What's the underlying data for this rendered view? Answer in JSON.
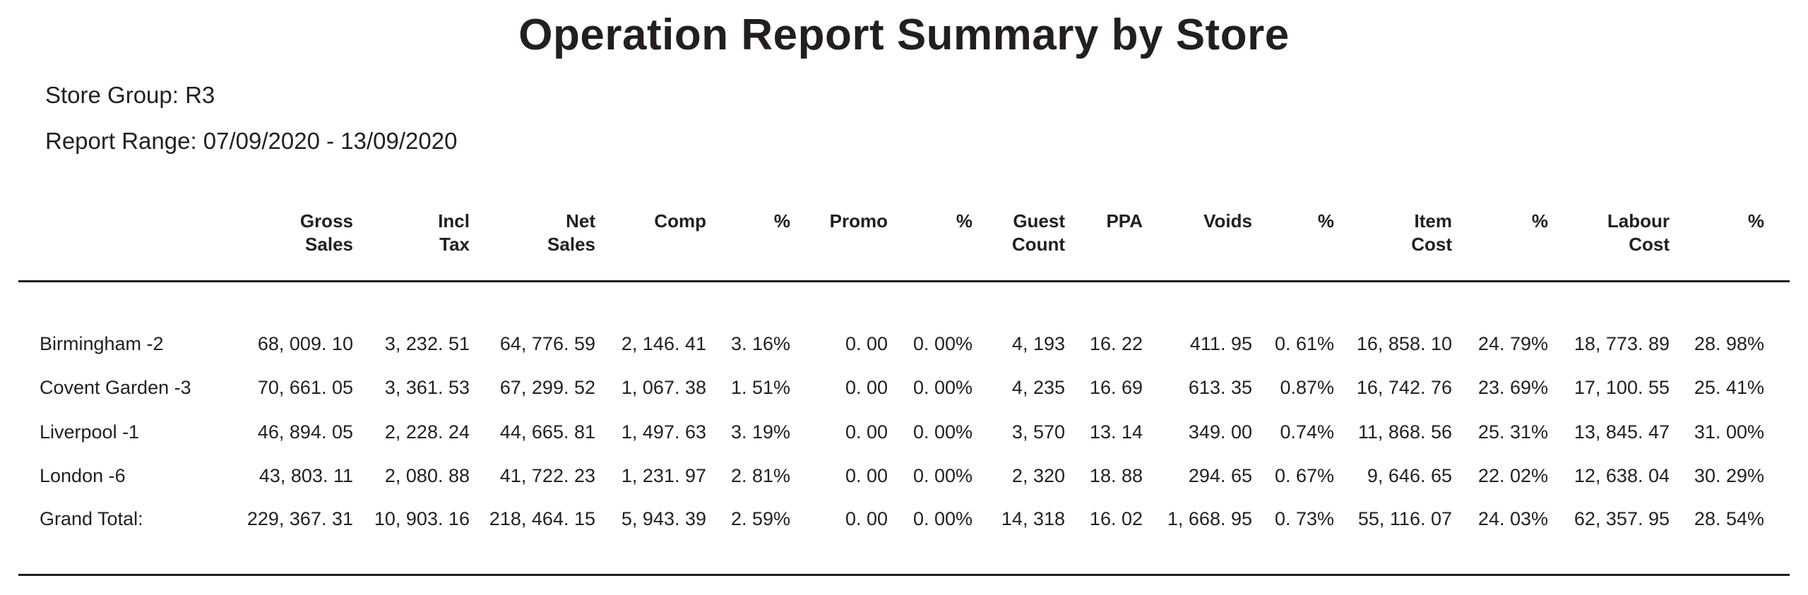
{
  "report": {
    "title": "Operation Report Summary by Store",
    "store_group": "Store Group: R3",
    "report_range": "Report Range: 07/09/2020 - 13/09/2020"
  },
  "columns": [
    {
      "line1": "Gross",
      "line2": "Sales"
    },
    {
      "line1": "Incl",
      "line2": "Tax"
    },
    {
      "line1": "Net",
      "line2": "Sales"
    },
    {
      "line1": "Comp",
      "line2": ""
    },
    {
      "line1": "%",
      "line2": ""
    },
    {
      "line1": "Promo",
      "line2": ""
    },
    {
      "line1": "%",
      "line2": ""
    },
    {
      "line1": "Guest",
      "line2": "Count"
    },
    {
      "line1": "PPA",
      "line2": ""
    },
    {
      "line1": "Voids",
      "line2": ""
    },
    {
      "line1": "%",
      "line2": ""
    },
    {
      "line1": "Item",
      "line2": "Cost"
    },
    {
      "line1": "%",
      "line2": ""
    },
    {
      "line1": "Labour",
      "line2": "Cost"
    },
    {
      "line1": "%",
      "line2": ""
    }
  ],
  "rows": [
    {
      "store": "Birmingham -2",
      "values": [
        "68, 009. 10",
        "3, 232. 51",
        "64, 776. 59",
        "2, 146. 41",
        "3. 16%",
        "0. 00",
        "0. 00%",
        "4, 193",
        "16. 22",
        "411. 95",
        "0. 61%",
        "16, 858. 10",
        "24. 79%",
        "18, 773. 89",
        "28. 98%"
      ]
    },
    {
      "store": "Covent Garden -3",
      "values": [
        "70, 661. 05",
        "3, 361. 53",
        "67, 299. 52",
        "1, 067. 38",
        "1. 51%",
        "0. 00",
        "0. 00%",
        "4, 235",
        "16. 69",
        "613. 35",
        "0.87%",
        "16, 742. 76",
        "23. 69%",
        "17, 100. 55",
        "25. 41%"
      ]
    },
    {
      "store": "Liverpool -1",
      "values": [
        "46, 894. 05",
        "2, 228. 24",
        "44, 665. 81",
        "1, 497. 63",
        "3. 19%",
        "0. 00",
        "0. 00%",
        "3, 570",
        "13. 14",
        "349. 00",
        "0.74%",
        "11, 868. 56",
        "25. 31%",
        "13, 845. 47",
        "31. 00%"
      ]
    },
    {
      "store": "London -6",
      "values": [
        "43, 803. 11",
        "2, 080. 88",
        "41, 722. 23",
        "1, 231. 97",
        "2. 81%",
        "0. 00",
        "0. 00%",
        "2, 320",
        "18. 88",
        "294. 65",
        "0. 67%",
        "9, 646. 65",
        "22. 02%",
        "12, 638. 04",
        "30. 29%"
      ]
    },
    {
      "store": "Grand Total:",
      "values": [
        "229, 367. 31",
        "10, 903. 16",
        "218, 464. 15",
        "5, 943. 39",
        "2. 59%",
        "0. 00",
        "0. 00%",
        "14, 318",
        "16. 02",
        "1, 668. 95",
        "0. 73%",
        "55, 116. 07",
        "24. 03%",
        "62, 357. 95",
        "28. 54%"
      ]
    }
  ]
}
